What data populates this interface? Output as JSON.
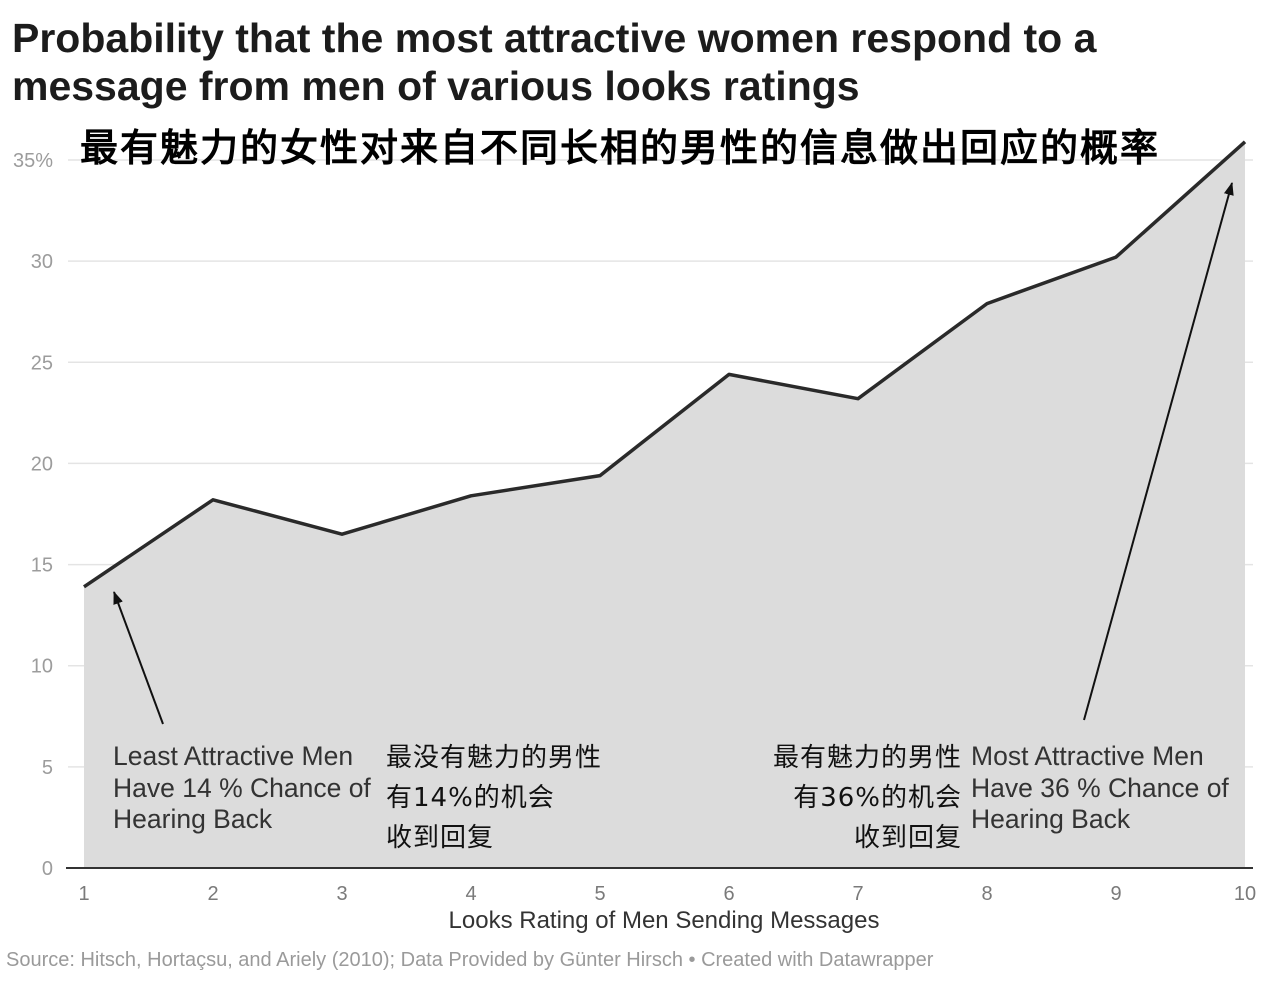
{
  "chart_data": {
    "type": "area",
    "title_lines": [
      "Probability that the most attractive women respond to a",
      "message from men of various looks ratings"
    ],
    "subtitle": "最有魅力的女性对来自不同长相的男性的信息做出回应的概率",
    "xlabel": "Looks Rating of Men Sending Messages",
    "ylabel": "",
    "x": [
      1,
      2,
      3,
      4,
      5,
      6,
      7,
      8,
      9,
      10
    ],
    "x_tick_labels": [
      "1",
      "2",
      "3",
      "4",
      "5",
      "6",
      "7",
      "8",
      "9",
      "10"
    ],
    "values": [
      13.9,
      18.2,
      16.5,
      18.4,
      19.4,
      24.4,
      23.2,
      27.9,
      30.2,
      35.9
    ],
    "xlim": [
      1,
      10
    ],
    "ylim": [
      0,
      35
    ],
    "y_ticks": [
      0,
      5,
      10,
      15,
      20,
      25,
      30,
      35
    ],
    "y_tick_labels": [
      "0",
      "5",
      "10",
      "15",
      "20",
      "25",
      "30",
      "35%"
    ],
    "grid": true,
    "annotations": {
      "least_attractive_en": [
        "Least Attractive Men",
        "Have 14 % Chance of",
        "Hearing Back"
      ],
      "least_attractive_zh": [
        "最没有魅力的男性",
        "有14%的机会",
        "收到回复"
      ],
      "most_attractive_zh": [
        "最有魅力的男性",
        "有36%的机会",
        "收到回复"
      ],
      "most_attractive_en": [
        "Most Attractive Men",
        "Have 36 % Chance of",
        "Hearing Back"
      ]
    },
    "source": "Source: Hitsch, Hortaçsu, and Ariely (2010); Data Provided by Günter Hirsch • Created with Datawrapper"
  },
  "colors": {
    "area_fill": "#dcdcdc",
    "line": "#2a2a2a",
    "grid": "#e4e4e4",
    "axis": "#333333",
    "arrow": "#111111"
  }
}
